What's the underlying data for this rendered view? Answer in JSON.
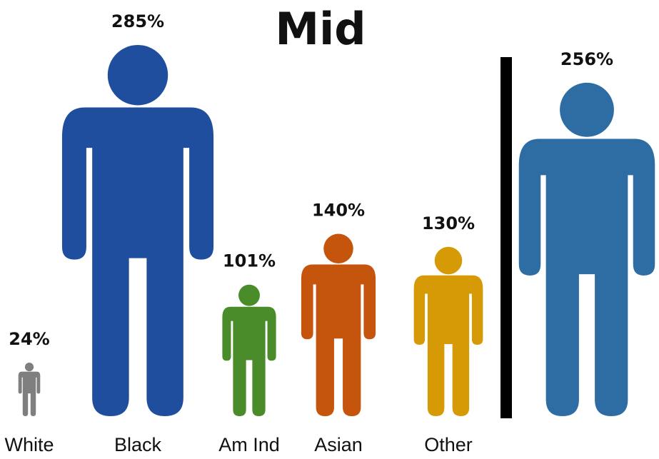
{
  "chart_data": {
    "type": "bar",
    "title": "Mid",
    "xlabel": "",
    "ylabel": "",
    "grid": false,
    "value_labels": [
      "24%",
      "285%",
      "101%",
      "140%",
      "130%",
      "256%"
    ],
    "categories": [
      "White",
      "Black",
      "Am Ind",
      "Asian",
      "Other",
      ""
    ],
    "values": [
      24,
      285,
      101,
      140,
      130,
      256
    ],
    "colors": [
      "#7f7f7f",
      "#1f4e9e",
      "#4a8b2a",
      "#c5540d",
      "#d79a07",
      "#2e6da4"
    ],
    "separator_before_last": true
  }
}
